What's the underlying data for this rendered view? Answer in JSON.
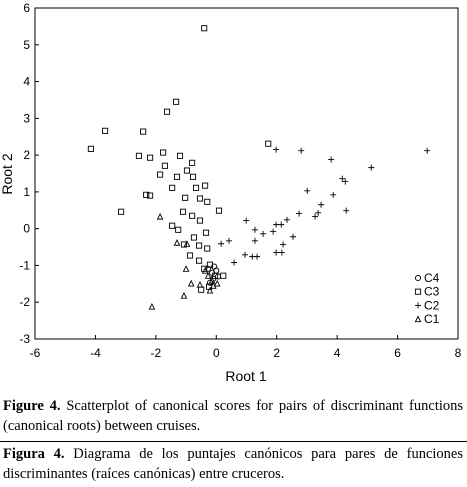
{
  "chart_data": {
    "type": "scatter",
    "xlabel": "Root 1",
    "ylabel": "Root 2",
    "xlim": [
      -6,
      8
    ],
    "xticks": [
      -6,
      -4,
      -2,
      0,
      2,
      4,
      6,
      8
    ],
    "ylim": [
      -3,
      6
    ],
    "yticks": [
      -3,
      -2,
      -1,
      0,
      1,
      2,
      3,
      4,
      5,
      6
    ],
    "grid": false,
    "legend": "lower right",
    "series": [
      {
        "name": "C4",
        "marker": "circle",
        "color": "#000000",
        "x": [
          -0.27,
          -0.14,
          0,
          -0.1,
          0.06,
          -0.21,
          -0.07
        ],
        "values": [
          -1.09,
          -1.2,
          -1.14,
          -1.36,
          -1.3,
          -1.47,
          -1.03
        ]
      },
      {
        "name": "C3",
        "marker": "square",
        "color": "#000000",
        "x": [
          -0.4,
          -1.33,
          -1.63,
          -3.68,
          -2.42,
          -4.15,
          1.72,
          -2.56,
          -2.19,
          -1.76,
          -1.2,
          -0.8,
          -1.7,
          -0.97,
          -1.86,
          -1.3,
          -0.77,
          -2.32,
          -2.19,
          -1.46,
          -0.67,
          -0.37,
          -1.03,
          -0.54,
          -0.3,
          -3.15,
          -1.1,
          -0.8,
          0.09,
          -1.46,
          -1.26,
          -0.54,
          -0.34,
          -0.74,
          -1.07,
          -0.57,
          -0.3,
          -0.57,
          -0.21,
          -0.04,
          0.23,
          -0.24,
          -0.5,
          -0.87,
          -0.4
        ],
        "values": [
          5.45,
          3.45,
          3.18,
          2.66,
          2.64,
          2.17,
          2.31,
          1.98,
          1.93,
          2.07,
          1.98,
          1.79,
          1.71,
          1.58,
          1.47,
          1.41,
          1.41,
          0.92,
          0.9,
          1.11,
          1.11,
          1.17,
          0.84,
          0.82,
          0.73,
          0.46,
          0.46,
          0.35,
          0.49,
          0.08,
          -0.03,
          0.22,
          -0.11,
          -0.24,
          -0.43,
          -0.46,
          -0.54,
          -0.87,
          -0.98,
          -1.28,
          -1.28,
          -1.58,
          -1.66,
          -0.73,
          -1.09
        ]
      },
      {
        "name": "C2",
        "marker": "plus",
        "color": "#000000",
        "x": [
          1.98,
          2.81,
          3.8,
          5.13,
          6.98,
          3.01,
          3.87,
          4.17,
          4.27,
          4.3,
          3.47,
          3.27,
          3.37,
          2.74,
          2.34,
          2.15,
          1.98,
          0.99,
          1.28,
          1.55,
          1.88,
          2.21,
          2.54,
          1.28,
          0.42,
          0.95,
          1.19,
          1.35,
          1.98,
          2.17,
          0.59,
          0.16
        ],
        "values": [
          2.15,
          2.12,
          1.88,
          1.66,
          2.12,
          1.03,
          0.92,
          1.36,
          1.28,
          0.49,
          0.65,
          0.33,
          0.43,
          0.41,
          0.24,
          0.11,
          0.11,
          0.22,
          -0.03,
          -0.14,
          -0.08,
          -0.43,
          -0.22,
          -0.33,
          -0.33,
          -0.71,
          -0.76,
          -0.76,
          -0.65,
          -0.65,
          -0.92,
          -0.41
        ]
      },
      {
        "name": "C1",
        "marker": "triangle",
        "color": "#000000",
        "x": [
          -1.86,
          -1.3,
          -0.97,
          -1.0,
          -0.83,
          -1.07,
          -2.13,
          -0.54,
          -0.37,
          -0.27,
          -0.14,
          -0.1,
          0.03,
          -0.21
        ],
        "values": [
          0.33,
          -0.38,
          -0.41,
          -1.09,
          -1.49,
          -1.82,
          -2.12,
          -1.52,
          -1.14,
          -1.28,
          -1.41,
          -1.55,
          -1.49,
          -1.68
        ]
      }
    ]
  },
  "captions": [
    {
      "label": "Figure 4.",
      "text": "Scatterplot of canonical scores for pairs of discriminant functions (canonical roots) between cruises."
    },
    {
      "label": "Figura 4.",
      "text": "Diagrama de los puntajes canónicos para pares de funciones discriminantes (raíces canónicas) entre cruceros."
    }
  ]
}
